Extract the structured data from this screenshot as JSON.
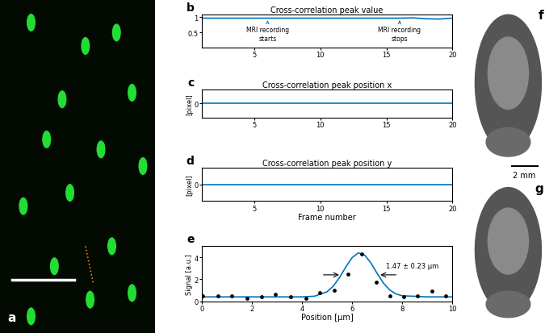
{
  "chart_data": [
    {
      "label": "b",
      "type": "line",
      "title": "Cross-correlation peak value",
      "x": [
        1,
        2,
        3,
        4,
        5,
        6,
        7,
        8,
        9,
        10,
        11,
        12,
        13,
        14,
        15,
        16,
        17,
        18,
        19,
        20
      ],
      "values": [
        0.97,
        0.97,
        0.97,
        0.97,
        0.97,
        0.97,
        0.97,
        0.97,
        0.97,
        0.97,
        0.97,
        0.97,
        0.97,
        0.97,
        0.97,
        0.97,
        0.98,
        0.95,
        0.94,
        0.97
      ],
      "color": "#0072bd",
      "xlim": [
        1,
        20
      ],
      "xticks": [
        5,
        10,
        15,
        20
      ],
      "ylim": [
        0,
        1.1
      ],
      "yticks": [
        0.5,
        1
      ],
      "annotations": [
        {
          "text": "MRI recording\nstarts",
          "x": 6
        },
        {
          "text": "MRI recording\nstops",
          "x": 16
        }
      ]
    },
    {
      "label": "c",
      "type": "line",
      "title": "Cross-correlation peak position x",
      "y_label": "[pixel]",
      "x": [
        1,
        2,
        3,
        4,
        5,
        6,
        7,
        8,
        9,
        10,
        11,
        12,
        13,
        14,
        15,
        16,
        17,
        18,
        19,
        20
      ],
      "values": [
        0,
        0,
        0,
        0,
        0,
        0,
        0,
        0,
        0,
        0,
        0,
        0,
        0,
        0,
        0,
        0,
        0,
        0,
        0,
        0
      ],
      "color": "#0072bd",
      "xlim": [
        1,
        20
      ],
      "xticks": [
        5,
        10,
        15,
        20
      ],
      "ylim": [
        -1,
        1
      ],
      "yticks": [
        0
      ]
    },
    {
      "label": "d",
      "type": "line",
      "title": "Cross-correlation peak position y",
      "y_label": "[pixel]",
      "x_label": "Frame number",
      "x": [
        1,
        2,
        3,
        4,
        5,
        6,
        7,
        8,
        9,
        10,
        11,
        12,
        13,
        14,
        15,
        16,
        17,
        18,
        19,
        20
      ],
      "values": [
        0,
        0,
        0,
        0,
        0,
        0,
        0,
        0,
        0,
        0,
        0,
        0,
        0,
        0,
        0,
        0,
        0,
        0,
        0,
        0
      ],
      "color": "#0072bd",
      "xlim": [
        1,
        20
      ],
      "xticks": [
        5,
        10,
        15,
        20
      ],
      "ylim": [
        -1,
        1
      ],
      "yticks": [
        0
      ]
    },
    {
      "label": "e",
      "type": "scatter",
      "x_label": "Position [µm]",
      "y_label": "Signal [a.u.]",
      "xlim": [
        0,
        10
      ],
      "xticks": [
        0,
        2,
        4,
        6,
        8,
        10
      ],
      "ylim": [
        0,
        5
      ],
      "yticks": [
        0,
        2,
        4
      ],
      "series": [
        {
          "type": "scatter",
          "color": "#000000",
          "x": [
            0.05,
            0.65,
            1.2,
            1.8,
            2.4,
            2.95,
            3.55,
            4.15,
            4.7,
            5.3,
            5.85,
            6.4,
            6.95,
            7.5,
            8.05,
            8.6,
            9.2,
            9.75
          ],
          "values": [
            0.5,
            0.5,
            0.5,
            0.3,
            0.4,
            0.6,
            0.4,
            0.3,
            0.8,
            1.0,
            2.5,
            4.3,
            1.7,
            0.5,
            0.4,
            0.5,
            0.9,
            0.5
          ]
        },
        {
          "type": "line",
          "color": "#0072bd",
          "x": [
            0,
            1,
            2,
            3,
            4,
            4.5,
            5,
            5.25,
            5.5,
            5.75,
            6,
            6.25,
            6.5,
            6.75,
            7,
            7.25,
            7.5,
            7.75,
            8,
            9,
            10
          ],
          "values": [
            0.4,
            0.4,
            0.4,
            0.4,
            0.4,
            0.46,
            0.86,
            1.37,
            2.16,
            3.11,
            3.96,
            4.39,
            4.2,
            3.48,
            2.53,
            1.66,
            1.03,
            0.67,
            0.5,
            0.4,
            0.4
          ]
        }
      ],
      "annotations": [
        {
          "text": "1.47 ± 0.23 µm",
          "x": [
            5.57,
            7.04
          ],
          "y": 2.4
        }
      ]
    }
  ],
  "images": [
    {
      "label": "a"
    },
    {
      "label": "f",
      "scale_bar": "2 mm"
    },
    {
      "label": "g"
    }
  ]
}
